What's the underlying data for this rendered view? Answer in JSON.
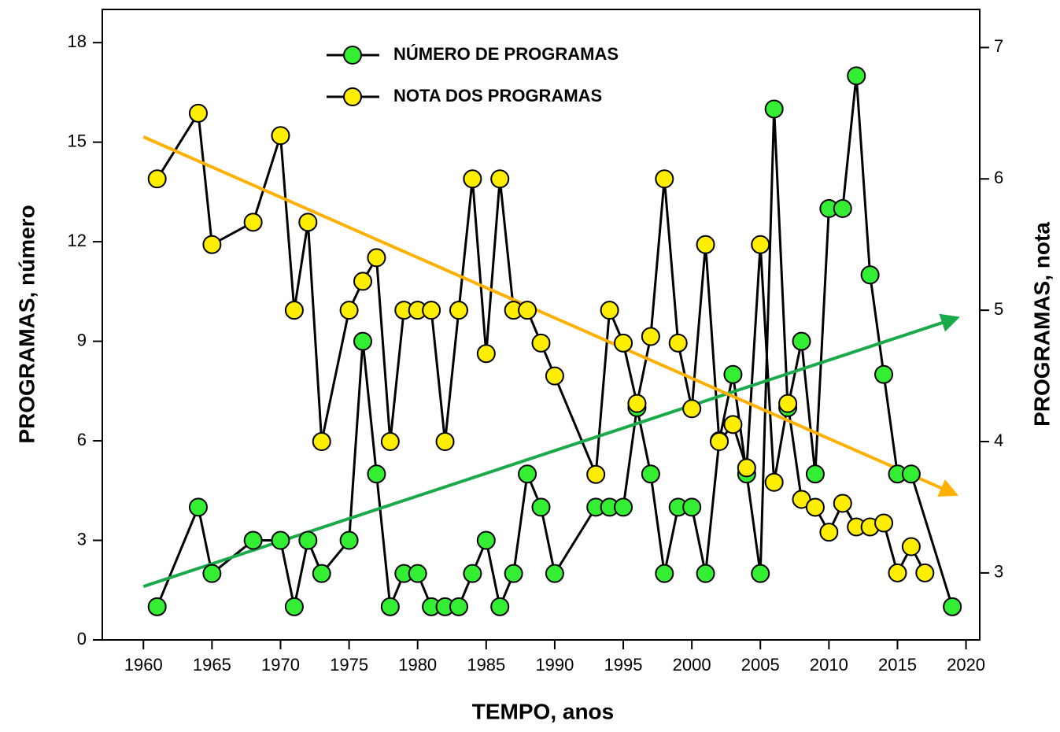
{
  "chart_data": {
    "type": "line",
    "x_label": "TEMPO, anos",
    "y_label": "PROGRAMAS, número",
    "y2_label": "PROGRAMAS, nota",
    "xlim": [
      1957,
      2021
    ],
    "xticks": [
      1960,
      1965,
      1970,
      1975,
      1980,
      1985,
      1990,
      1995,
      2000,
      2005,
      2010,
      2015,
      2020
    ],
    "ylim": [
      0,
      19
    ],
    "yticks": [
      0,
      3,
      6,
      9,
      12,
      15,
      18
    ],
    "y2lim": [
      2.49,
      7.29
    ],
    "y2ticks": [
      3,
      4,
      5,
      6,
      7
    ],
    "grid": false,
    "legend": "top",
    "line_color": "#000000",
    "series": [
      {
        "name": "NÚMERO DE PROGRAMAS",
        "color": "#33ee33",
        "x": [
          1961,
          1964,
          1965,
          1968,
          1970,
          1971,
          1972,
          1973,
          1975,
          1976,
          1977,
          1978,
          1979,
          1980,
          1981,
          1982,
          1983,
          1984,
          1985,
          1986,
          1987,
          1988,
          1989,
          1990,
          1993,
          1994,
          1995,
          1996,
          1997,
          1998,
          1999,
          2000,
          2001,
          2002,
          2003,
          2004,
          2005,
          2006,
          2007,
          2008,
          2009,
          2010,
          2011,
          2012,
          2013,
          2014,
          2015,
          2016,
          2019
        ],
        "values": [
          1,
          4,
          2,
          3,
          3,
          1,
          3,
          2,
          3,
          9,
          5,
          1,
          2,
          2,
          1,
          1,
          1,
          2,
          3,
          1,
          2,
          5,
          4,
          2,
          4,
          4,
          4,
          7,
          5,
          2,
          4,
          4,
          2,
          6,
          8,
          5,
          2,
          16,
          7,
          9,
          5,
          13,
          13,
          17,
          11,
          8,
          5,
          5,
          1
        ]
      },
      {
        "name": "NOTA DOS PROGRAMAS",
        "color": "#ffee00",
        "axis": "y2",
        "x": [
          1961,
          1964,
          1965,
          1968,
          1970,
          1971,
          1972,
          1973,
          1975,
          1976,
          1977,
          1978,
          1979,
          1980,
          1981,
          1982,
          1983,
          1984,
          1985,
          1986,
          1987,
          1988,
          1989,
          1990,
          1993,
          1994,
          1995,
          1996,
          1997,
          1998,
          1999,
          2000,
          2001,
          2002,
          2003,
          2004,
          2005,
          2006,
          2007,
          2008,
          2009,
          2010,
          2011,
          2012,
          2013,
          2014,
          2015,
          2016,
          2017
        ],
        "values": [
          6.0,
          6.5,
          5.5,
          5.67,
          6.33,
          5.0,
          5.67,
          4.0,
          5.0,
          5.22,
          5.4,
          4.0,
          5.0,
          5.0,
          5.0,
          4.0,
          5.0,
          6.0,
          4.67,
          6.0,
          5.0,
          5.0,
          4.75,
          4.5,
          3.75,
          5.0,
          4.75,
          4.29,
          4.8,
          6.0,
          4.75,
          4.25,
          5.5,
          4.0,
          4.13,
          3.8,
          5.5,
          3.69,
          4.29,
          3.56,
          3.5,
          3.31,
          3.53,
          3.35,
          3.35,
          3.38,
          3.0,
          3.2,
          3.0
        ]
      }
    ],
    "trendlines": [
      {
        "color": "#1aaa4a",
        "x": [
          1960,
          2019.3
        ],
        "values": [
          1.61,
          9.7
        ]
      },
      {
        "color": "#ffb000",
        "axis": "y2",
        "x": [
          1960,
          2019.2
        ],
        "values": [
          6.32,
          3.6
        ]
      }
    ]
  }
}
